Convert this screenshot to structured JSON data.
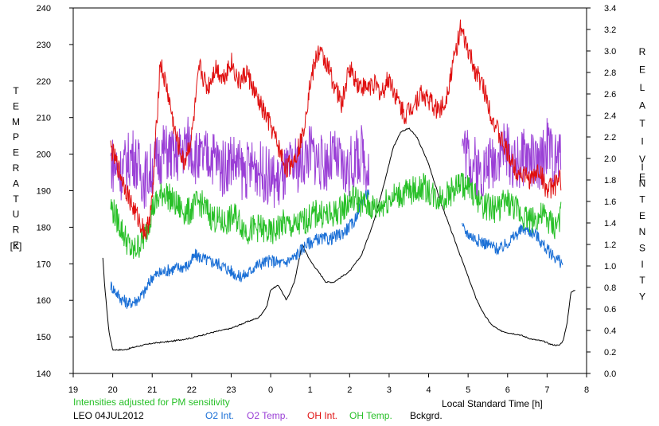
{
  "chart_data": {
    "type": "line",
    "xlabel": "Local Standard Time [h]",
    "x_ticks": [
      "19",
      "20",
      "21",
      "22",
      "23",
      "0",
      "1",
      "2",
      "3",
      "4",
      "5",
      "6",
      "7",
      "8"
    ],
    "ylabel_left": "TEMPERATURE",
    "ylabel_left_unit": "[K]",
    "ylabel_right_word1": "RELATIVE",
    "ylabel_right_word2": "INTENSITY",
    "ylim_left": [
      140,
      240
    ],
    "ylim_right": [
      0.0,
      3.4
    ],
    "y_ticks_left": [
      "140",
      "150",
      "160",
      "170",
      "180",
      "190",
      "200",
      "210",
      "220",
      "230",
      "240"
    ],
    "y_ticks_right": [
      "0.0",
      "0.2",
      "0.4",
      "0.6",
      "0.8",
      "1.0",
      "1.2",
      "1.4",
      "1.6",
      "1.8",
      "2.0",
      "2.2",
      "2.4",
      "2.6",
      "2.8",
      "3.0",
      "3.2",
      "3.4"
    ],
    "note": "Intensities adjusted for PM sensitivity",
    "site_date": "LEO 04JUL2012",
    "grid": false,
    "series": [
      {
        "name": "O2 Int.",
        "axis": "right",
        "color": "#1a6fd6",
        "x": [
          19.95,
          20.2,
          20.4,
          20.6,
          20.8,
          21.0,
          21.3,
          21.6,
          21.9,
          22.1,
          22.4,
          22.7,
          23.0,
          23.2,
          23.4,
          23.6,
          23.8,
          24.0,
          24.3,
          24.6,
          24.9,
          25.2,
          25.5,
          25.8,
          26.1,
          26.3,
          26.5,
          28.85,
          29.0,
          29.2,
          29.5,
          29.8,
          30.1,
          30.4,
          30.7,
          31.0,
          31.3,
          31.4
        ],
        "y": [
          0.82,
          0.7,
          0.65,
          0.68,
          0.75,
          0.9,
          0.95,
          0.98,
          1.0,
          1.1,
          1.05,
          1.02,
          0.95,
          0.9,
          0.92,
          1.0,
          1.03,
          1.05,
          1.02,
          1.08,
          1.2,
          1.25,
          1.25,
          1.3,
          1.4,
          1.6,
          1.7,
          1.35,
          1.3,
          1.25,
          1.2,
          1.15,
          1.25,
          1.35,
          1.3,
          1.15,
          1.05,
          1.02
        ]
      },
      {
        "name": "O2 Temp.",
        "axis": "left",
        "color": "#9a3fd6",
        "x": [
          19.95,
          20.2,
          20.5,
          20.8,
          21.0,
          21.3,
          21.6,
          21.9,
          22.2,
          22.5,
          22.8,
          23.0,
          23.3,
          23.6,
          23.9,
          24.2,
          24.5,
          24.8,
          25.0,
          25.3,
          25.6,
          25.9,
          26.1,
          26.3,
          26.5,
          28.85,
          29.0,
          29.3,
          29.6,
          29.9,
          30.2,
          30.5,
          30.8,
          31.0,
          31.2,
          31.35
        ],
        "y": [
          198,
          195,
          200,
          193,
          196,
          201,
          199,
          203,
          198,
          200,
          196,
          199,
          195,
          197,
          194,
          192,
          196,
          198,
          201,
          197,
          199,
          195,
          198,
          200,
          196,
          203,
          200,
          195,
          198,
          202,
          197,
          200,
          196,
          203,
          198,
          200
        ]
      },
      {
        "name": "OH Int.",
        "axis": "right",
        "color": "#e01010",
        "x": [
          19.95,
          20.1,
          20.3,
          20.5,
          20.7,
          20.85,
          21.0,
          21.2,
          21.4,
          21.6,
          21.8,
          22.0,
          22.2,
          22.4,
          22.6,
          22.8,
          23.0,
          23.2,
          23.4,
          23.6,
          23.8,
          24.0,
          24.2,
          24.4,
          24.6,
          24.8,
          25.0,
          25.2,
          25.4,
          25.6,
          25.8,
          26.0,
          26.2,
          26.4,
          26.6,
          26.8,
          27.0,
          27.2,
          27.4,
          27.6,
          27.8,
          28.0,
          28.2,
          28.4,
          28.6,
          28.8,
          29.0,
          29.2,
          29.4,
          29.6,
          29.8,
          30.0,
          30.2,
          30.4,
          30.6,
          30.8,
          31.0,
          31.2,
          31.35
        ],
        "y": [
          2.1,
          1.95,
          1.75,
          1.55,
          1.4,
          1.3,
          1.6,
          2.9,
          2.6,
          2.2,
          1.95,
          2.2,
          2.85,
          2.65,
          2.85,
          2.75,
          2.9,
          2.7,
          2.8,
          2.6,
          2.45,
          2.3,
          2.1,
          1.9,
          2.0,
          2.2,
          2.7,
          3.0,
          2.9,
          2.7,
          2.5,
          2.85,
          2.7,
          2.65,
          2.7,
          2.6,
          2.75,
          2.55,
          2.4,
          2.5,
          2.6,
          2.55,
          2.45,
          2.5,
          2.85,
          3.2,
          3.0,
          2.8,
          2.65,
          2.4,
          2.2,
          2.05,
          1.9,
          1.85,
          1.8,
          1.9,
          1.7,
          1.75,
          1.8
        ]
      },
      {
        "name": "OH Temp.",
        "axis": "left",
        "color": "#28c028",
        "x": [
          19.95,
          20.2,
          20.5,
          20.8,
          21.0,
          21.3,
          21.6,
          21.9,
          22.2,
          22.5,
          22.8,
          23.1,
          23.4,
          23.7,
          24.0,
          24.3,
          24.6,
          24.9,
          25.2,
          25.5,
          25.8,
          26.1,
          26.4,
          26.7,
          27.0,
          27.3,
          27.6,
          27.9,
          28.2,
          28.5,
          28.8,
          29.1,
          29.4,
          29.7,
          30.0,
          30.3,
          30.6,
          30.9,
          31.2,
          31.35
        ],
        "y": [
          186,
          180,
          173,
          177,
          185,
          190,
          186,
          184,
          187,
          183,
          181,
          183,
          179,
          180,
          178,
          181,
          180,
          182,
          184,
          183,
          185,
          188,
          186,
          185,
          188,
          189,
          190,
          191,
          188,
          189,
          192,
          190,
          186,
          185,
          187,
          184,
          182,
          183,
          180,
          183
        ]
      },
      {
        "name": "Bckgrd.",
        "axis": "right",
        "color": "#000000",
        "x": [
          19.75,
          19.8,
          19.9,
          20.0,
          20.3,
          20.6,
          21.0,
          21.5,
          22.0,
          22.5,
          23.0,
          23.4,
          23.7,
          23.9,
          24.0,
          24.2,
          24.4,
          24.6,
          24.8,
          25.0,
          25.2,
          25.4,
          25.6,
          25.8,
          26.0,
          26.3,
          26.6,
          26.9,
          27.1,
          27.3,
          27.5,
          27.7,
          28.0,
          28.3,
          28.6,
          28.8,
          29.0,
          29.2,
          29.4,
          29.6,
          29.8,
          30.0,
          30.3,
          30.6,
          30.9,
          31.1,
          31.3,
          31.4,
          31.5,
          31.6,
          31.72
        ],
        "y": [
          1.07,
          0.8,
          0.4,
          0.22,
          0.22,
          0.25,
          0.28,
          0.3,
          0.33,
          0.38,
          0.42,
          0.48,
          0.52,
          0.62,
          0.78,
          0.82,
          0.68,
          0.85,
          1.2,
          1.05,
          0.95,
          0.85,
          0.85,
          0.9,
          0.95,
          1.1,
          1.4,
          1.8,
          2.1,
          2.25,
          2.28,
          2.2,
          1.95,
          1.6,
          1.3,
          1.1,
          0.9,
          0.7,
          0.55,
          0.45,
          0.4,
          0.38,
          0.36,
          0.32,
          0.3,
          0.27,
          0.26,
          0.3,
          0.45,
          0.75,
          0.78
        ]
      }
    ]
  }
}
